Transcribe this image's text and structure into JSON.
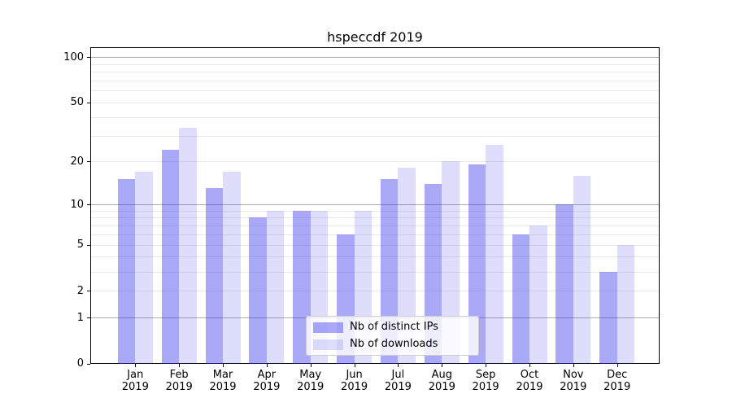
{
  "chart_data": {
    "type": "bar",
    "title": "hspeccdf 2019",
    "categories": [
      "Jan",
      "Feb",
      "Mar",
      "Apr",
      "May",
      "Jun",
      "Jul",
      "Aug",
      "Sep",
      "Oct",
      "Nov",
      "Dec"
    ],
    "year": "2019",
    "series": [
      {
        "name": "Nb of distinct IPs",
        "key": "distinct-ips",
        "color": "rgba(50,50,235,0.42)",
        "values": [
          15,
          24,
          13,
          8,
          9,
          6,
          15,
          14,
          19,
          6,
          10,
          3
        ]
      },
      {
        "name": "Nb of downloads",
        "key": "downloads",
        "color": "rgba(50,50,235,0.16)",
        "values": [
          17,
          34,
          17,
          9,
          9,
          9,
          18,
          20,
          26,
          7,
          16,
          5
        ]
      }
    ],
    "y_scale": "log10(1+x)",
    "y_tick_labels": [
      0,
      1,
      2,
      5,
      10,
      20,
      50,
      100
    ],
    "major_gridlines": [
      1,
      10,
      100
    ],
    "minor_gridlines": [
      2,
      3,
      4,
      5,
      6,
      7,
      8,
      9,
      20,
      30,
      40,
      50,
      60,
      70,
      80,
      90
    ],
    "ylim": [
      0,
      116
    ],
    "grid": true,
    "legend_position": "lower center",
    "colors": {
      "bar_dark": "#a9a9f7",
      "bar_light": "#dbdbf7",
      "major_grid": "#ababab",
      "minor_grid": "#eaeaea",
      "axis": "#000000",
      "legend_border": "#cccccc"
    }
  }
}
